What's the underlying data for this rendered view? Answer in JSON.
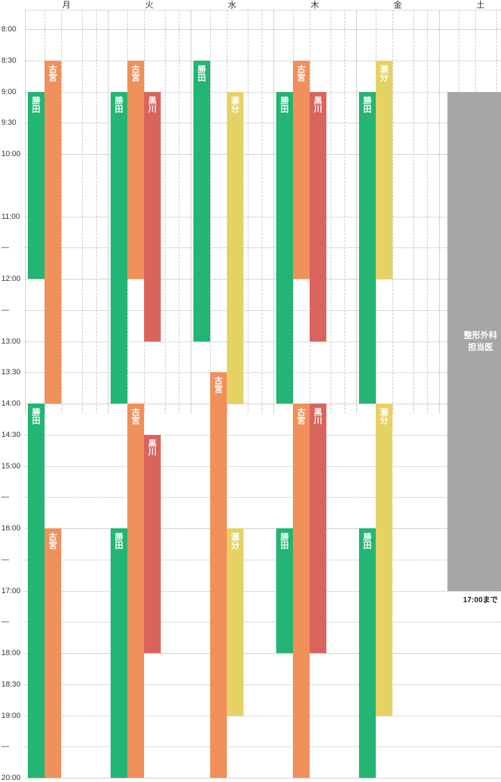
{
  "days": [
    "月",
    "火",
    "水",
    "木",
    "金",
    "土"
  ],
  "time_labels": [
    {
      "text": "8:00",
      "t": 8.0
    },
    {
      "text": "8:30",
      "t": 8.5
    },
    {
      "text": "9:00",
      "t": 9.0
    },
    {
      "text": "9:30",
      "t": 9.5
    },
    {
      "text": "10:00",
      "t": 10.0
    },
    {
      "text": "11:00",
      "t": 11.0
    },
    {
      "text": "—",
      "t": 11.5
    },
    {
      "text": "12:00",
      "t": 12.0
    },
    {
      "text": "—",
      "t": 12.5
    },
    {
      "text": "13:00",
      "t": 13.0
    },
    {
      "text": "13:30",
      "t": 13.5
    },
    {
      "text": "14:00",
      "t": 14.0
    },
    {
      "text": "14:30",
      "t": 14.5
    },
    {
      "text": "15:00",
      "t": 15.0
    },
    {
      "text": "—",
      "t": 15.5
    },
    {
      "text": "16:00",
      "t": 16.0
    },
    {
      "text": "—",
      "t": 16.5
    },
    {
      "text": "17:00",
      "t": 17.0
    },
    {
      "text": "—",
      "t": 17.5
    },
    {
      "text": "18:00",
      "t": 18.0
    },
    {
      "text": "18:30",
      "t": 18.5
    },
    {
      "text": "19:00",
      "t": 19.0
    },
    {
      "text": "—",
      "t": 19.5
    },
    {
      "text": "20:00",
      "t": 20.0
    }
  ],
  "colors": {
    "勝田": "#22b573",
    "古宮": "#f0905a",
    "黒川": "#d9645e",
    "瀬分": "#e6d264",
    "整形外科": "#a6a6a6"
  },
  "shifts": [
    {
      "day": 0,
      "lane": 0,
      "name": "勝田",
      "start": 9.0,
      "end": 12.0
    },
    {
      "day": 0,
      "lane": 1,
      "name": "古宮",
      "start": 8.5,
      "end": 14.0
    },
    {
      "day": 0,
      "lane": 0,
      "name": "勝田",
      "start": 14.0,
      "end": 20.0
    },
    {
      "day": 0,
      "lane": 1,
      "name": "古宮",
      "start": 16.0,
      "end": 20.0
    },
    {
      "day": 1,
      "lane": 0,
      "name": "勝田",
      "start": 9.0,
      "end": 14.0
    },
    {
      "day": 1,
      "lane": 1,
      "name": "古宮",
      "start": 8.5,
      "end": 12.0
    },
    {
      "day": 1,
      "lane": 2,
      "name": "黒川",
      "start": 9.0,
      "end": 13.0
    },
    {
      "day": 1,
      "lane": 1,
      "name": "古宮",
      "start": 14.0,
      "end": 20.0
    },
    {
      "day": 1,
      "lane": 2,
      "name": "黒川",
      "start": 14.5,
      "end": 18.0
    },
    {
      "day": 1,
      "lane": 0,
      "name": "勝田",
      "start": 16.0,
      "end": 20.0
    },
    {
      "day": 2,
      "lane": 0,
      "name": "勝田",
      "start": 8.5,
      "end": 13.0
    },
    {
      "day": 2,
      "lane": 2,
      "name": "瀬分",
      "start": 9.0,
      "end": 14.0
    },
    {
      "day": 2,
      "lane": 1,
      "name": "古宮",
      "start": 13.5,
      "end": 20.0
    },
    {
      "day": 2,
      "lane": 2,
      "name": "瀬分",
      "start": 16.0,
      "end": 19.0
    },
    {
      "day": 3,
      "lane": 0,
      "name": "勝田",
      "start": 9.0,
      "end": 14.0
    },
    {
      "day": 3,
      "lane": 1,
      "name": "古宮",
      "start": 8.5,
      "end": 12.0
    },
    {
      "day": 3,
      "lane": 2,
      "name": "黒川",
      "start": 9.0,
      "end": 13.0
    },
    {
      "day": 3,
      "lane": 1,
      "name": "古宮",
      "start": 14.0,
      "end": 20.0
    },
    {
      "day": 3,
      "lane": 2,
      "name": "黒川",
      "start": 14.0,
      "end": 18.0
    },
    {
      "day": 3,
      "lane": 0,
      "name": "勝田",
      "start": 16.0,
      "end": 18.0
    },
    {
      "day": 4,
      "lane": 0,
      "name": "勝田",
      "start": 9.0,
      "end": 14.0
    },
    {
      "day": 4,
      "lane": 1,
      "name": "瀬分",
      "start": 8.5,
      "end": 12.0
    },
    {
      "day": 4,
      "lane": 1,
      "name": "瀬分",
      "start": 14.0,
      "end": 19.0
    },
    {
      "day": 4,
      "lane": 0,
      "name": "勝田",
      "start": 16.0,
      "end": 20.0
    }
  ],
  "saturday": {
    "line1": "整形外科",
    "line2": "担当医",
    "start": 9.0,
    "end": 17.0,
    "note": "17:00まで"
  }
}
